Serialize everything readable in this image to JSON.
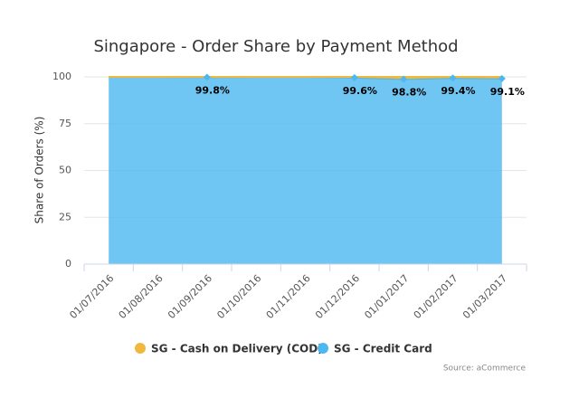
{
  "chart_data": {
    "type": "area",
    "title": "Singapore - Order Share by Payment Method",
    "y_label": "Share of Orders (%)",
    "categories": [
      "01/07/2016",
      "01/08/2016",
      "01/09/2016",
      "01/10/2016",
      "01/11/2016",
      "01/12/2016",
      "01/01/2017",
      "01/02/2017",
      "01/03/2017"
    ],
    "series": [
      {
        "name": "SG - Cash on Delivery (COD)",
        "color": "#f0b83c",
        "values": [
          0,
          0,
          0.2,
          0,
          0,
          0.4,
          1.2,
          0.6,
          0.9
        ]
      },
      {
        "name": "SG - Credit Card",
        "color": "#4cb8f0",
        "values": [
          100,
          100,
          99.8,
          100,
          100,
          99.6,
          98.8,
          99.4,
          99.1
        ],
        "value_labels": [
          null,
          null,
          "99.8%",
          null,
          null,
          "99.6%",
          "98.8%",
          "99.4%",
          "99.1%"
        ]
      }
    ],
    "stacking": "normal",
    "ylim": [
      0,
      100
    ],
    "yticks": [
      0,
      25,
      50,
      75,
      100
    ],
    "grid": true,
    "source": "Source: aCommerce"
  }
}
